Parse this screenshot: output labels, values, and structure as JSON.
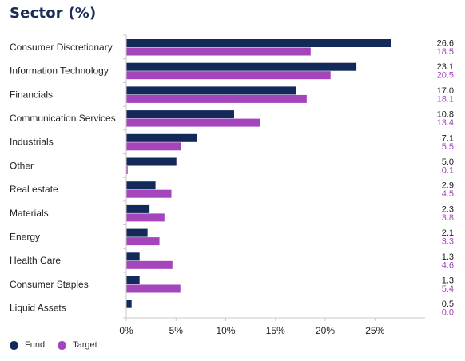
{
  "chart_data": {
    "type": "bar",
    "orientation": "horizontal",
    "title": "Sector (%)",
    "categories": [
      "Consumer Discretionary",
      "Information Technology",
      "Financials",
      "Communication Services",
      "Industrials",
      "Other",
      "Real estate",
      "Materials",
      "Energy",
      "Health Care",
      "Consumer Staples",
      "Liquid Assets"
    ],
    "series": [
      {
        "name": "Fund",
        "color": "#13295a",
        "values": [
          26.6,
          23.1,
          17.0,
          10.8,
          7.1,
          5.0,
          2.9,
          2.3,
          2.1,
          1.3,
          1.3,
          0.5
        ],
        "labels": [
          "26.6",
          "23.1",
          "17.0",
          "10.8",
          "7.1",
          "5.0",
          "2.9",
          "2.3",
          "2.1",
          "1.3",
          "1.3",
          "0.5"
        ]
      },
      {
        "name": "Target",
        "color": "#a445bc",
        "values": [
          18.5,
          20.5,
          18.1,
          13.4,
          5.5,
          0.1,
          4.5,
          3.8,
          3.3,
          4.6,
          5.4,
          0.0
        ],
        "labels": [
          "18.5",
          "20.5",
          "18.1",
          "13.4",
          "5.5",
          "0.1",
          "4.5",
          "3.8",
          "3.3",
          "4.6",
          "5.4",
          "0.0"
        ]
      }
    ],
    "xlim": [
      0,
      30
    ],
    "xticks": [
      0,
      5,
      10,
      15,
      20,
      25
    ],
    "xtick_labels": [
      "0%",
      "5%",
      "10%",
      "15%",
      "20%",
      "25%"
    ],
    "xlabel": "",
    "ylabel": "",
    "grid": false,
    "legend_position": "bottom-left"
  }
}
